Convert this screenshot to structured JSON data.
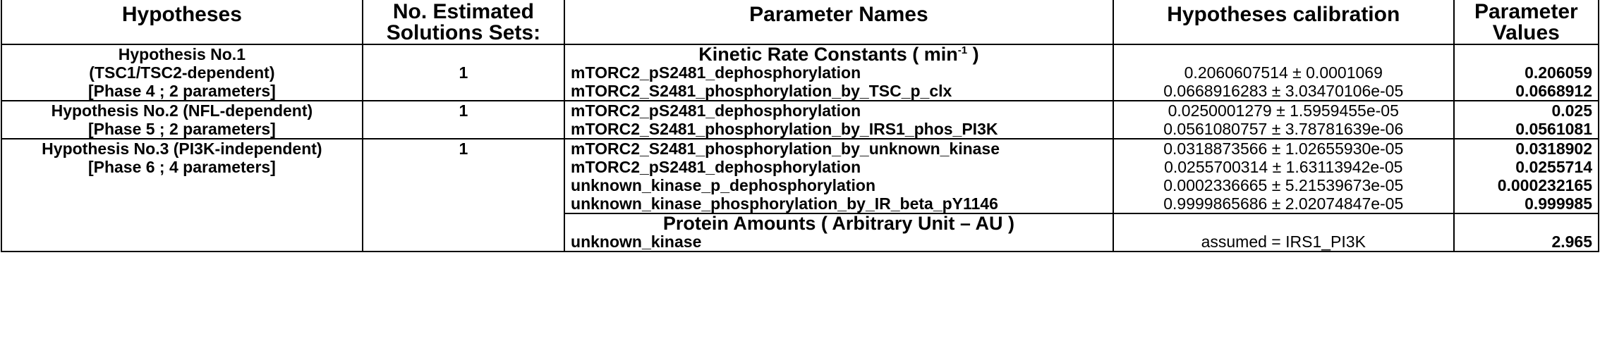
{
  "headers": {
    "hypotheses": "Hypotheses",
    "no_estimated_line1": "No. Estimated",
    "no_estimated_line2": "Solutions Sets:",
    "parameter_names": "Parameter Names",
    "calibration": "Hypotheses calibration",
    "values_line1": "Parameter",
    "values_line2": "Values"
  },
  "sections": {
    "kinetic_prefix": "Kinetic Rate Constants ( min",
    "kinetic_sup": "-1",
    "kinetic_suffix": " )",
    "protein": "Protein Amounts ( Arbitrary Unit – AU )"
  },
  "groups": [
    {
      "hypothesis_lines": [
        "Hypothesis No.1",
        "(TSC1/TSC2-dependent)",
        "[Phase 4 ; 2 parameters]"
      ],
      "solutions": "1",
      "params": [
        {
          "name": "mTORC2_pS2481_dephosphorylation",
          "calibration": "0.2060607514 ± 0.0001069",
          "value": "0.206059"
        },
        {
          "name": "mTORC2_S2481_phosphorylation_by_TSC_p_clx",
          "calibration": "0.0668916283 ± 3.03470106e-05",
          "value": "0.0668912"
        }
      ]
    },
    {
      "hypothesis_lines": [
        "Hypothesis No.2 (NFL-dependent)",
        "[Phase 5 ; 2 parameters]"
      ],
      "solutions": "1",
      "params": [
        {
          "name": "mTORC2_pS2481_dephosphorylation",
          "calibration": "0.0250001279 ± 1.5959455e-05",
          "value": "0.025"
        },
        {
          "name": "mTORC2_S2481_phosphorylation_by_IRS1_phos_PI3K",
          "calibration": "0.0561080757 ± 3.78781639e-06",
          "value": "0.0561081"
        }
      ]
    },
    {
      "hypothesis_lines": [
        "Hypothesis No.3 (PI3K-independent)",
        "[Phase  6 ; 4 parameters]"
      ],
      "solutions": "1",
      "params": [
        {
          "name": "mTORC2_S2481_phosphorylation_by_unknown_kinase",
          "calibration": "0.0318873566 ± 1.02655930e-05",
          "value": "0.0318902"
        },
        {
          "name": "mTORC2_pS2481_dephosphorylation",
          "calibration": "0.0255700314 ± 1.63113942e-05",
          "value": "0.0255714"
        },
        {
          "name": "unknown_kinase_p_dephosphorylation",
          "calibration": "0.0002336665 ± 5.21539673e-05",
          "value": "0.000232165"
        },
        {
          "name": "unknown_kinase_phosphorylation_by_IR_beta_pY1146",
          "calibration": "0.9999865686 ± 2.02074847e-05",
          "value": "0.999985"
        }
      ],
      "protein_params": [
        {
          "name": "unknown_kinase",
          "calibration": "assumed = IRS1_PI3K",
          "value": "2.965"
        }
      ]
    }
  ]
}
